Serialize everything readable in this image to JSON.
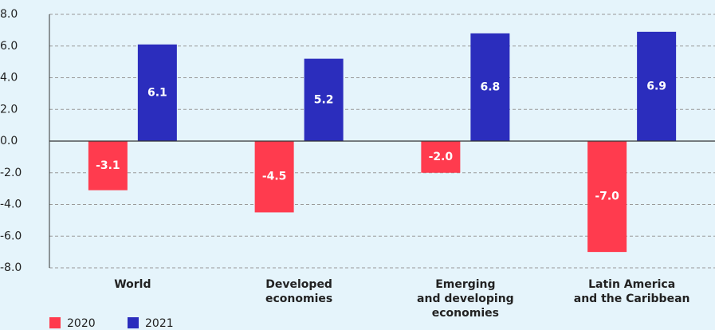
{
  "chart_data": {
    "type": "bar",
    "categories": [
      "World",
      "Developed\neconomies",
      "Emerging\nand developing\neconomies",
      "Latin America\nand the Caribbean"
    ],
    "series": [
      {
        "name": "2020",
        "color": "#ff3b4e",
        "values": [
          -3.1,
          -4.5,
          -2.0,
          -7.0
        ],
        "value_labels": [
          "-3.1",
          "-4.5",
          "-2.0",
          "-7.0"
        ]
      },
      {
        "name": "2021",
        "color": "#2b2dbd",
        "values": [
          6.1,
          5.2,
          6.8,
          6.9
        ],
        "value_labels": [
          "6.1",
          "5.2",
          "6.8",
          "6.9"
        ]
      }
    ],
    "ylim": [
      -8,
      8
    ],
    "yticks": [
      {
        "value": -8,
        "label": "-8.0"
      },
      {
        "value": -6,
        "label": "-6.0"
      },
      {
        "value": -4,
        "label": "-4.0"
      },
      {
        "value": -2,
        "label": "-2.0"
      },
      {
        "value": 0,
        "label": "0.0"
      },
      {
        "value": 2,
        "label": "2.0"
      },
      {
        "value": 4,
        "label": "4.0"
      },
      {
        "value": 6,
        "label": "6.0"
      },
      {
        "value": 8,
        "label": "8.0"
      }
    ],
    "grid": true
  }
}
